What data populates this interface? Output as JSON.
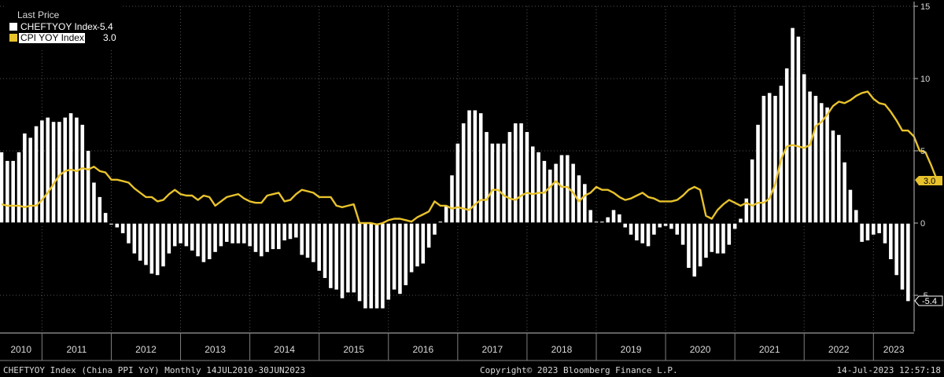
{
  "footer": {
    "left": "CHEFTYOY Index (China PPI YoY)  Monthly 14JUL2010-30JUN2023",
    "center": "Copyright© 2023 Bloomberg Finance L.P.",
    "right": "14-Jul-2023 12:57:18"
  },
  "legend": {
    "title": "Last Price",
    "items": [
      {
        "label": "CHEFTYOY Index",
        "value": "-5.4",
        "color": "#ffffff"
      },
      {
        "label": "CPI YOY Index",
        "value": "3.0",
        "color": "#e8c22c"
      }
    ]
  },
  "last_value_tags": [
    {
      "text": "3.0",
      "series": "CPI YOY Index"
    },
    {
      "text": "-5.4",
      "series": "CHEFTYOY Index"
    }
  ],
  "colors": {
    "background": "#000000",
    "bars": "#ffffff",
    "line": "#e8c22c",
    "grid": "#555555"
  },
  "chart_data": {
    "type": "bar",
    "x_start": "2010-06",
    "x_end": "2023-06",
    "frequency": "monthly",
    "ylim": [
      -7.5,
      15
    ],
    "yticks": [
      15,
      10,
      5,
      0,
      -5
    ],
    "xticks": [
      "2010",
      "2011",
      "2012",
      "2013",
      "2014",
      "2015",
      "2016",
      "2017",
      "2018",
      "2019",
      "2020",
      "2021",
      "2022",
      "2023"
    ],
    "grid": true,
    "legend_position": "top-left",
    "series": [
      {
        "name": "CHEFTYOY Index",
        "type": "bar",
        "values": [
          4.9,
          4.3,
          4.3,
          4.9,
          6.2,
          5.9,
          6.7,
          7.1,
          7.3,
          7.0,
          7.0,
          7.3,
          7.6,
          7.3,
          6.8,
          5.0,
          2.8,
          1.8,
          0.7,
          -0.1,
          -0.3,
          -0.7,
          -1.4,
          -2.1,
          -2.6,
          -2.9,
          -3.5,
          -3.6,
          -3.0,
          -2.1,
          -1.6,
          -1.4,
          -1.6,
          -1.9,
          -2.3,
          -2.7,
          -2.5,
          -2.0,
          -1.6,
          -1.3,
          -1.4,
          -1.4,
          -1.4,
          -1.6,
          -2.0,
          -2.3,
          -2.0,
          -1.8,
          -1.8,
          -1.2,
          -1.1,
          -1.0,
          -2.2,
          -2.4,
          -2.7,
          -3.3,
          -3.8,
          -4.5,
          -4.6,
          -5.2,
          -4.8,
          -4.8,
          -5.4,
          -5.9,
          -5.9,
          -5.9,
          -5.9,
          -5.3,
          -4.6,
          -4.9,
          -4.3,
          -3.4,
          -3.0,
          -2.8,
          -1.7,
          -0.8,
          0.1,
          1.2,
          3.3,
          5.5,
          6.9,
          7.8,
          7.8,
          7.6,
          6.3,
          5.5,
          5.5,
          5.5,
          6.3,
          6.9,
          6.9,
          6.3,
          5.3,
          4.9,
          4.3,
          3.7,
          4.1,
          4.7,
          4.7,
          4.1,
          3.3,
          2.7,
          0.9,
          0.1,
          0.1,
          0.4,
          0.9,
          0.6,
          -0.3,
          -0.8,
          -1.2,
          -1.4,
          -1.6,
          -0.8,
          -0.3,
          -0.2,
          -0.4,
          -0.8,
          -1.5,
          -3.1,
          -3.7,
          -3.0,
          -2.4,
          -2.0,
          -2.1,
          -2.1,
          -1.5,
          -0.4,
          0.3,
          1.7,
          4.4,
          6.8,
          8.8,
          9.0,
          8.8,
          9.5,
          10.7,
          13.5,
          12.9,
          10.3,
          9.1,
          8.8,
          8.3,
          8.0,
          6.4,
          6.1,
          4.2,
          2.3,
          0.9,
          -1.3,
          -1.2,
          -0.8,
          -0.7,
          -1.4,
          -2.5,
          -3.6,
          -4.6,
          -5.4
        ],
        "last_value": -5.4
      },
      {
        "name": "CPI YOY Index",
        "type": "line",
        "values": [
          1.3,
          1.2,
          1.2,
          1.2,
          1.1,
          1.2,
          1.2,
          1.6,
          2.1,
          2.7,
          3.3,
          3.6,
          3.7,
          3.6,
          3.8,
          3.7,
          3.9,
          3.6,
          3.5,
          3.0,
          3.0,
          2.9,
          2.8,
          2.4,
          2.1,
          1.8,
          1.8,
          1.5,
          1.6,
          2.0,
          2.3,
          2.0,
          1.9,
          1.9,
          1.6,
          1.9,
          1.8,
          1.2,
          1.5,
          1.8,
          1.9,
          2.0,
          1.7,
          1.5,
          1.4,
          1.4,
          1.9,
          2.0,
          2.1,
          1.5,
          1.6,
          2.0,
          2.3,
          2.2,
          2.1,
          1.8,
          1.8,
          1.8,
          1.2,
          1.1,
          1.2,
          1.3,
          0.0,
          0.0,
          0.0,
          -0.1,
          0.0,
          0.2,
          0.3,
          0.3,
          0.2,
          0.1,
          0.4,
          0.6,
          0.8,
          1.5,
          1.2,
          1.2,
          1.0,
          1.1,
          1.0,
          0.9,
          1.3,
          1.6,
          1.6,
          2.3,
          2.3,
          1.9,
          1.7,
          1.6,
          1.9,
          2.1,
          2.0,
          2.1,
          2.1,
          2.5,
          2.9,
          2.5,
          2.5,
          2.1,
          1.5,
          1.9,
          2.1,
          2.5,
          2.3,
          2.3,
          2.1,
          1.8,
          1.6,
          1.7,
          1.9,
          2.1,
          1.8,
          1.7,
          1.5,
          1.5,
          1.5,
          1.6,
          1.9,
          2.3,
          2.5,
          2.3,
          0.5,
          0.3,
          0.9,
          1.3,
          1.6,
          1.4,
          1.2,
          1.4,
          1.2,
          1.4,
          1.4,
          1.7,
          2.7,
          4.4,
          5.3,
          5.4,
          5.3,
          5.2,
          5.4,
          6.7,
          7.0,
          7.5,
          8.1,
          8.4,
          8.3,
          8.5,
          8.8,
          9.0,
          9.1,
          8.6,
          8.3,
          8.2,
          7.7,
          7.1,
          6.4,
          6.4,
          6.0,
          5.0,
          4.9,
          4.0,
          3.0
        ],
        "last_value": 3.0
      }
    ]
  }
}
